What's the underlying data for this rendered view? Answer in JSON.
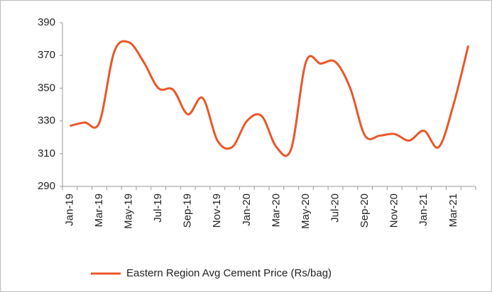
{
  "chart_data": {
    "type": "line",
    "categories": [
      "Jan-19",
      null,
      "Mar-19",
      null,
      "May-19",
      null,
      "Jul-19",
      null,
      "Sep-19",
      null,
      "Nov-19",
      null,
      "Jan-20",
      null,
      "Mar-20",
      null,
      "May-20",
      null,
      "Jul-20",
      null,
      "Sep-20",
      null,
      "Nov-20",
      null,
      "Jan-21",
      null,
      "Mar-21",
      null
    ],
    "series": [
      {
        "name": "Eastern Region Avg Cement Price (Rs/bag)",
        "color": "#e8572a",
        "values": [
          327,
          329,
          329,
          372,
          378,
          366,
          350,
          349,
          334,
          344,
          318,
          314,
          330,
          333,
          314,
          313,
          366,
          365,
          366,
          350,
          321,
          321,
          322,
          318,
          324,
          314,
          340,
          376
        ]
      }
    ],
    "ylim": [
      290,
      390
    ],
    "yticks": [
      290,
      310,
      330,
      350,
      370,
      390
    ],
    "grid": false,
    "legend": "bottom"
  }
}
